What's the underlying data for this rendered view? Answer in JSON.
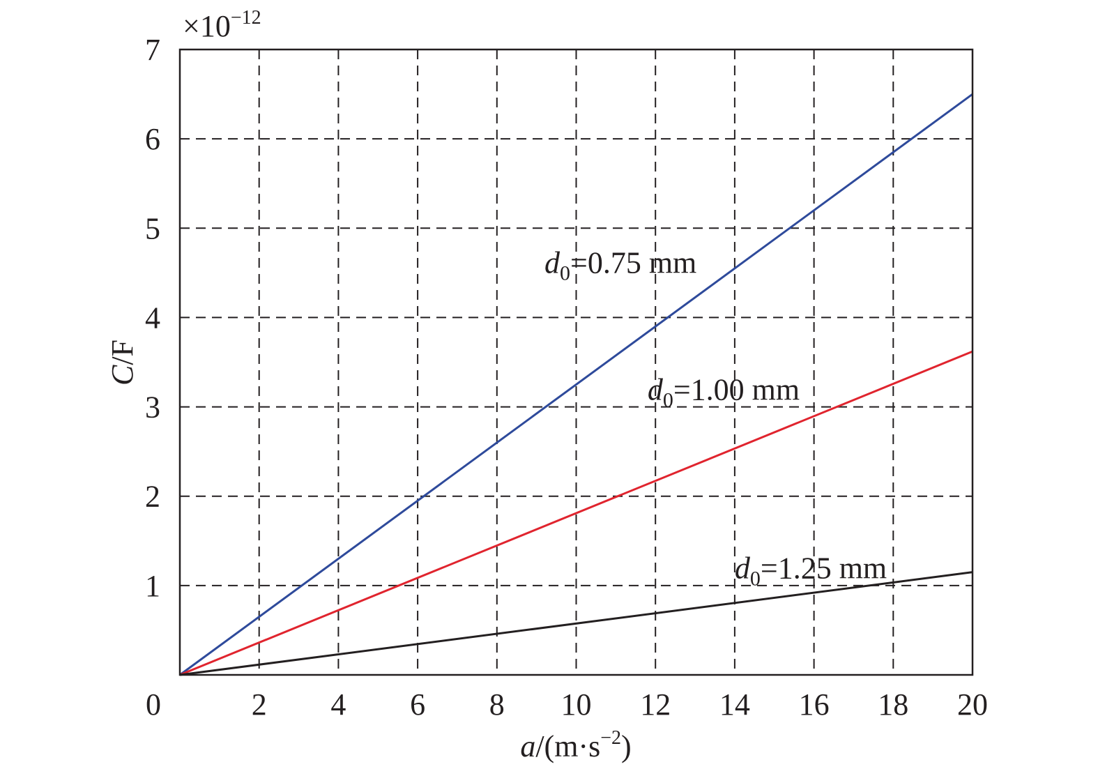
{
  "chart_data": {
    "type": "line",
    "xlabel": {
      "var": "a",
      "unit_open": "/(m·s",
      "unit_exp": "−2",
      "unit_close": ")"
    },
    "ylabel": {
      "var": "C",
      "unit": "/F"
    },
    "y_multiplier": {
      "prefix": "×10",
      "exp": "−12"
    },
    "xlim": [
      0,
      20
    ],
    "ylim": [
      0,
      7
    ],
    "x_ticks": [
      "0",
      "2",
      "4",
      "6",
      "8",
      "10",
      "12",
      "14",
      "16",
      "18",
      "20"
    ],
    "y_ticks": [
      "1",
      "2",
      "3",
      "4",
      "5",
      "6",
      "7"
    ],
    "grid": true,
    "series": [
      {
        "name": "d0=0.75 mm",
        "color": "#2e4a9b",
        "x": [
          0,
          20
        ],
        "y": [
          0,
          6.5
        ]
      },
      {
        "name": "d0=1.00 mm",
        "color": "#e0242e",
        "x": [
          0,
          20
        ],
        "y": [
          0,
          3.62
        ]
      },
      {
        "name": "d0=1.25 mm",
        "color": "#231f20",
        "x": [
          0,
          20
        ],
        "y": [
          0,
          1.15
        ]
      }
    ],
    "annotations": [
      {
        "sym": "d",
        "sub": "0",
        "text": "=0.75 mm",
        "x": 9.2,
        "y": 4.5
      },
      {
        "sym": "d",
        "sub": "0",
        "text": "=1.00 mm",
        "x": 11.8,
        "y": 3.08
      },
      {
        "sym": "d",
        "sub": "0",
        "text": "=1.25 mm",
        "x": 14.0,
        "y": 1.08
      }
    ]
  }
}
